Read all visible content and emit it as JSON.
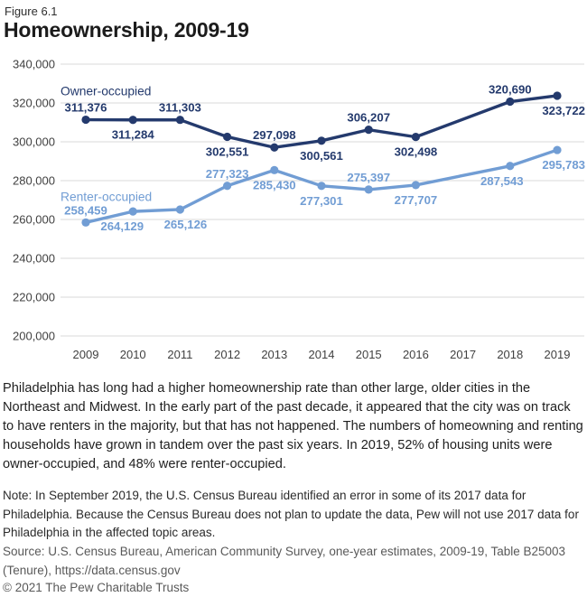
{
  "figure_label": "Figure 6.1",
  "title": "Homeownership, 2009-19",
  "chart_data": {
    "type": "line",
    "x": [
      "2009",
      "2010",
      "2011",
      "2012",
      "2013",
      "2014",
      "2015",
      "2016",
      "2017",
      "2018",
      "2019"
    ],
    "ylim": [
      200000,
      340000
    ],
    "grid": true,
    "grid_color": "#D9D9D9",
    "tick_color": "#414141",
    "yticks": [
      {
        "value": 200000,
        "label": "200,000"
      },
      {
        "value": 220000,
        "label": "220,000"
      },
      {
        "value": 240000,
        "label": "240,000"
      },
      {
        "value": 260000,
        "label": "260,000"
      },
      {
        "value": 280000,
        "label": "280,000"
      },
      {
        "value": 300000,
        "label": "300,000"
      },
      {
        "value": 320000,
        "label": "320,000"
      },
      {
        "value": 340000,
        "label": "340,000"
      }
    ],
    "legend_position": "inline-annotations",
    "series": [
      {
        "name": "Owner-occupied",
        "color": "#243A6D",
        "name_dy": -27,
        "points": [
          {
            "x": "2009",
            "value": 311376,
            "label": "311,376",
            "pos": "above"
          },
          {
            "x": "2010",
            "value": 311284,
            "label": "311,284",
            "pos": "below"
          },
          {
            "x": "2011",
            "value": 311303,
            "label": "311,303",
            "pos": "above"
          },
          {
            "x": "2012",
            "value": 302551,
            "label": "302,551",
            "pos": "below"
          },
          {
            "x": "2013",
            "value": 297098,
            "label": "297,098",
            "pos": "above"
          },
          {
            "x": "2014",
            "value": 300561,
            "label": "300,561",
            "pos": "below"
          },
          {
            "x": "2015",
            "value": 306207,
            "label": "306,207",
            "pos": "above"
          },
          {
            "x": "2016",
            "value": 302498,
            "label": "302,498",
            "pos": "below"
          },
          {
            "x": "2017",
            "value": null,
            "label": null,
            "pos": null
          },
          {
            "x": "2018",
            "value": 320690,
            "label": "320,690",
            "pos": "above"
          },
          {
            "x": "2019",
            "value": 323722,
            "label": "323,722",
            "pos": "below"
          }
        ]
      },
      {
        "name": "Renter-occupied",
        "color": "#719DD4",
        "name_dy": -24,
        "points": [
          {
            "x": "2009",
            "value": 258459,
            "label": "258,459",
            "pos": "above"
          },
          {
            "x": "2010",
            "value": 264129,
            "label": "264,129",
            "pos": "below",
            "dx": -12
          },
          {
            "x": "2011",
            "value": 265126,
            "label": "265,126",
            "pos": "below",
            "dx": 6
          },
          {
            "x": "2012",
            "value": 277323,
            "label": "277,323",
            "pos": "above"
          },
          {
            "x": "2013",
            "value": 285430,
            "label": "285,430",
            "pos": "below"
          },
          {
            "x": "2014",
            "value": 277301,
            "label": "277,301",
            "pos": "below"
          },
          {
            "x": "2015",
            "value": 275397,
            "label": "275,397",
            "pos": "above"
          },
          {
            "x": "2016",
            "value": 277707,
            "label": "277,707",
            "pos": "below"
          },
          {
            "x": "2017",
            "value": null,
            "label": null,
            "pos": null
          },
          {
            "x": "2018",
            "value": 287543,
            "label": "287,543",
            "pos": "below",
            "dx": -9
          },
          {
            "x": "2019",
            "value": 295783,
            "label": "295,783",
            "pos": "below"
          }
        ]
      }
    ]
  },
  "description": "Philadelphia has long had a higher homeownership rate than other large, older cities in the Northeast and Midwest. In the early part of the past decade, it appeared that the city was on track to have renters in the majority, but that has not happened. The numbers of homeowning and renting households have grown in tandem over the past six years. In 2019, 52% of housing units were owner-occupied, and 48% were renter-occupied.",
  "note": "Note: In September 2019, the U.S. Census Bureau identified an error in some of its 2017 data for Philadelphia. Because the Census Bureau does not plan to update the data, Pew will not use 2017 data for Philadelphia in the affected topic areas.",
  "source": "Source: U.S. Census Bureau, American Community Survey, one-year estimates, 2009-19, Table B25003 (Tenure), https://data.census.gov",
  "copyright": "© 2021 The Pew Charitable Trusts"
}
